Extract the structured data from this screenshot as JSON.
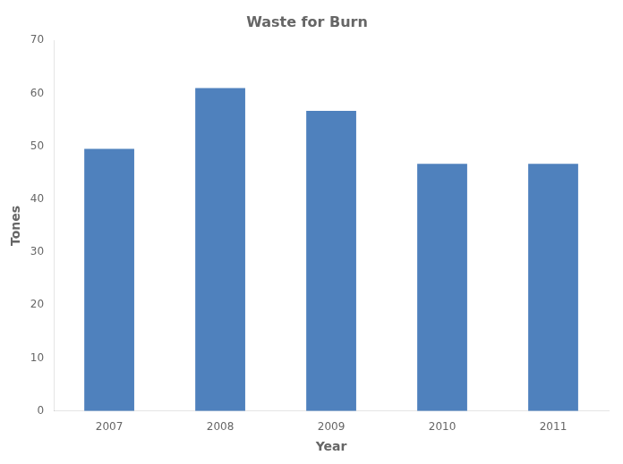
{
  "chart_data": {
    "type": "bar",
    "title": "Waste for Burn",
    "xlabel": "Year",
    "ylabel": "Tones",
    "categories": [
      "2007",
      "2008",
      "2009",
      "2010",
      "2011"
    ],
    "values": [
      49.5,
      61.0,
      56.7,
      46.7,
      46.7
    ],
    "color": "#4f81bd",
    "ylim": [
      0,
      70
    ],
    "yticks": [
      0,
      10,
      20,
      30,
      40,
      50,
      60,
      70
    ],
    "grid": false
  }
}
